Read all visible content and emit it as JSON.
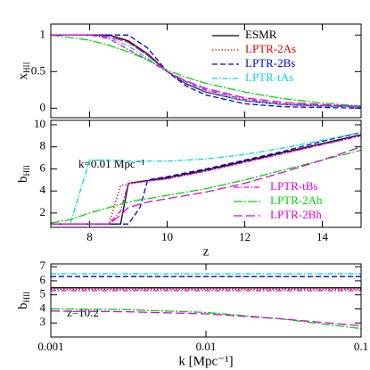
{
  "chart_data": [
    {
      "type": "line",
      "y_label": "x",
      "y_label_sub": "HII",
      "xlim": [
        7,
        15
      ],
      "xticks": [
        8,
        10,
        12,
        14
      ],
      "xtick_labels": false,
      "ylim": [
        -0.13,
        1.15
      ],
      "yticks": [
        0,
        0.5,
        1
      ],
      "legend": "upper right",
      "x": [
        7,
        8,
        8.5,
        9,
        9.5,
        10,
        10.5,
        11,
        12,
        13,
        14,
        15
      ],
      "series": [
        {
          "name": "ESMR",
          "color": "#000000",
          "dash": "solid",
          "values": [
            1,
            1,
            1,
            0.92,
            0.74,
            0.5,
            0.33,
            0.22,
            0.1,
            0.05,
            0.03,
            0.02
          ]
        },
        {
          "name": "LPTR-2As",
          "color": "#e00000",
          "dash": "dotted",
          "values": [
            1,
            1,
            1,
            0.9,
            0.72,
            0.5,
            0.33,
            0.22,
            0.1,
            0.05,
            0.03,
            0.02
          ]
        },
        {
          "name": "LPTR-2Bs",
          "color": "#0000e0",
          "dash": "dashed",
          "values": [
            1,
            1,
            1,
            1,
            0.82,
            0.5,
            0.3,
            0.18,
            0.06,
            0.02,
            0.01,
            0
          ]
        },
        {
          "name": "LPTR-tAs",
          "color": "#00d8d8",
          "dash": "dashdot",
          "values": [
            1,
            1,
            0.97,
            0.85,
            0.68,
            0.5,
            0.34,
            0.23,
            0.1,
            0.05,
            0.03,
            0.02
          ]
        },
        {
          "color": "#e000e0",
          "dash": "dashdot",
          "values": [
            1,
            1,
            0.95,
            0.8,
            0.66,
            0.5,
            0.36,
            0.25,
            0.12,
            0.06,
            0.04,
            0.03
          ]
        },
        {
          "color": "#00d800",
          "dash": "longdashdot",
          "values": [
            1,
            0.93,
            0.86,
            0.77,
            0.66,
            0.52,
            0.42,
            0.34,
            0.22,
            0.13,
            0.07,
            0.03
          ]
        },
        {
          "color": "#e000e0",
          "dash": "longdash",
          "values": [
            1,
            1,
            0.98,
            0.9,
            0.72,
            0.5,
            0.37,
            0.27,
            0.14,
            0.08,
            0.05,
            0.02
          ]
        }
      ]
    },
    {
      "type": "line",
      "x_label": "z",
      "y_label": "b",
      "y_label_sub": "HII",
      "annotation": "k=0.01 Mpc⁻¹",
      "xlim": [
        7,
        15
      ],
      "xticks": [
        8,
        10,
        12,
        14
      ],
      "xtick_labels": true,
      "ylim": [
        0.7,
        10.4
      ],
      "yticks": [
        2,
        4,
        6,
        8,
        10
      ],
      "legend": "lower right",
      "x": [
        7,
        7.5,
        8,
        8.5,
        8.8,
        9,
        9.3,
        9.5,
        10,
        11,
        12,
        13,
        14,
        15
      ],
      "series": [
        {
          "color": "#000000",
          "dash": "solid",
          "values": [
            1,
            1,
            1,
            1,
            1,
            4.7,
            4.85,
            4.95,
            5.2,
            5.9,
            6.7,
            7.5,
            8.3,
            9.1
          ]
        },
        {
          "color": "#e00000",
          "dash": "dotted",
          "values": [
            1,
            1,
            1,
            1,
            4.5,
            4.6,
            4.8,
            4.9,
            5.1,
            5.8,
            6.6,
            7.4,
            8.2,
            9.0
          ]
        },
        {
          "color": "#0000e0",
          "dash": "dashed",
          "values": [
            1,
            1,
            1,
            1,
            1,
            1,
            2.5,
            5.0,
            5.3,
            6.0,
            6.8,
            7.6,
            8.5,
            9.3
          ]
        },
        {
          "color": "#00d8d8",
          "dash": "dashdot",
          "values": [
            1,
            1,
            6.8,
            6.8,
            6.75,
            6.7,
            6.7,
            6.7,
            6.7,
            6.9,
            7.3,
            7.9,
            8.6,
            9.3
          ]
        },
        {
          "name": "LPTR-tBs",
          "color": "#e000e0",
          "dash": "dashdot",
          "values": [
            1,
            1,
            1,
            1,
            2.2,
            4.7,
            4.8,
            4.9,
            5.1,
            5.8,
            6.6,
            7.4,
            8.2,
            9.0
          ]
        },
        {
          "name": "LPTR-2Ah",
          "color": "#00d800",
          "dash": "longdashdot",
          "values": [
            1.1,
            1.4,
            2.0,
            2.5,
            2.8,
            3.0,
            3.2,
            3.3,
            3.6,
            4.2,
            5.0,
            5.9,
            6.8,
            7.7
          ]
        },
        {
          "name": "LPTR-2Bh",
          "color": "#e000e0",
          "dash": "longdash",
          "values": [
            1,
            1,
            1,
            1,
            1.8,
            2.5,
            2.8,
            3.0,
            3.3,
            3.9,
            4.7,
            5.7,
            6.8,
            8.0
          ]
        }
      ]
    },
    {
      "type": "line",
      "x_label": "k [Mpc⁻¹]",
      "y_label": "b",
      "y_label_sub": "HII",
      "annotation": "z=10.2",
      "xscale": "log",
      "xlim": [
        0.001,
        0.1
      ],
      "xticks": [
        0.001,
        0.01,
        0.1
      ],
      "xtick_labels": true,
      "ylim": [
        2,
        7.2
      ],
      "yticks": [
        3,
        4,
        5,
        6,
        7
      ],
      "x": [
        0.001,
        0.003,
        0.01,
        0.03,
        0.1
      ],
      "series": [
        {
          "color": "#000000",
          "dash": "solid",
          "values": [
            5.5,
            5.5,
            5.5,
            5.5,
            5.5
          ]
        },
        {
          "color": "#e00000",
          "dash": "dotted",
          "values": [
            5.4,
            5.4,
            5.4,
            5.4,
            5.4
          ]
        },
        {
          "color": "#0000e0",
          "dash": "dashed",
          "values": [
            6.3,
            6.3,
            6.3,
            6.3,
            6.3
          ]
        },
        {
          "color": "#00d8d8",
          "dash": "dashdot",
          "values": [
            6.5,
            6.5,
            6.5,
            6.5,
            6.5
          ]
        },
        {
          "color": "#e000e0",
          "dash": "dashdot",
          "values": [
            5.3,
            5.3,
            5.3,
            5.3,
            5.3
          ]
        },
        {
          "color": "#00d800",
          "dash": "longdashdot",
          "values": [
            4.0,
            3.95,
            3.75,
            3.3,
            2.6
          ]
        },
        {
          "color": "#e000e0",
          "dash": "longdash",
          "values": [
            3.85,
            3.8,
            3.65,
            3.3,
            2.8
          ]
        }
      ]
    }
  ]
}
